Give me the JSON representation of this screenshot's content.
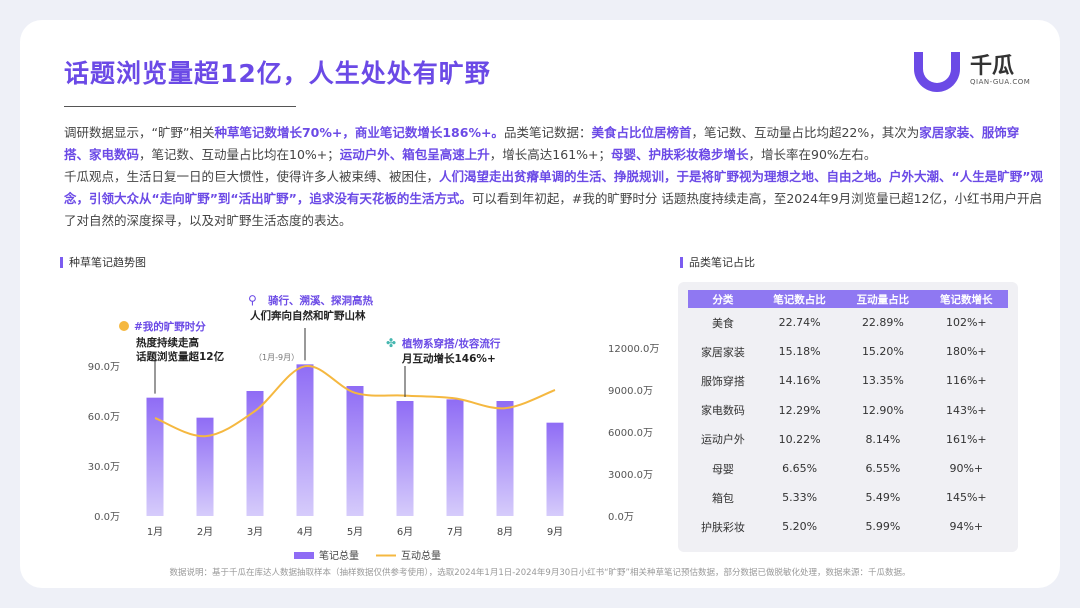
{
  "title": "话题浏览量超12亿，人生处处有旷野",
  "logo": {
    "name": "千瓜",
    "sub": "QIAN-GUA.COM"
  },
  "paragraph1": [
    {
      "t": "调研数据显示，“旷野”相关",
      "h": false
    },
    {
      "t": "种草笔记数增长70%+，商业笔记数增长186%+。",
      "h": true
    },
    {
      "t": "品类笔记数据：",
      "h": false
    },
    {
      "t": "美食占比位居榜首",
      "h": true
    },
    {
      "t": "，笔记数、互动量占比均超22%，其次为",
      "h": false
    },
    {
      "t": "家居家装、服饰穿搭、家电数码",
      "h": true
    },
    {
      "t": "，笔记数、互动量占比均在10%+；",
      "h": false
    },
    {
      "t": "运动户外、箱包呈高速上升",
      "h": true
    },
    {
      "t": "，增长高达161%+；",
      "h": false
    },
    {
      "t": "母婴、护肤彩妆稳步增长",
      "h": true
    },
    {
      "t": "，增长率在90%左右。",
      "h": false
    }
  ],
  "paragraph2": [
    {
      "t": "千瓜观点，生活日复一日的巨大惯性，使得许多人被束缚、被困住，",
      "h": false
    },
    {
      "t": "人们渴望走出贫瘠单调的生活、挣脱规训，于是将旷野视为理想之地、自由之地。户外大潮、“人生是旷野”观念，引领大众从“走向旷野”到“活出旷野”，追求没有天花板的生活方式。",
      "h": true
    },
    {
      "t": "可以看到年初起，#我的旷野时分 话题热度持续走高，至2024年9月浏览量已超12亿，小红书用户开启了对自然的深度探寻，以及对旷野生活态度的表达。",
      "h": false
    }
  ],
  "trend_title": "种草笔记趋势图",
  "table_title": "品类笔记占比",
  "annotations": [
    {
      "icon": "sun-icon",
      "line1": "#我的旷野时分",
      "line2": "热度持续走高",
      "line3": "话题浏览量超12亿",
      "sub": "（1月-9月）"
    },
    {
      "icon": "bicycle-icon",
      "line1": "骑行、溯溪、探洞高热",
      "line2": "人们奔向自然和旷野山林"
    },
    {
      "icon": "plant-icon",
      "line1": "植物系穿搭/妆容流行",
      "line2": "月互动增长146%+"
    }
  ],
  "colors": {
    "accent": "#6b4ae6",
    "bar_top": "#8f6cf5",
    "bar_bottom": "#d6ccfb",
    "line": "#f5b840"
  },
  "chart_data": {
    "type": "bar",
    "categories": [
      "1月",
      "2月",
      "3月",
      "4月",
      "5月",
      "6月",
      "7月",
      "8月",
      "9月"
    ],
    "series": [
      {
        "name": "笔记总量",
        "type": "bar",
        "axis": "left",
        "values": [
          71,
          59,
          75,
          91,
          78,
          69,
          70,
          69,
          56
        ]
      },
      {
        "name": "互动总量",
        "type": "line",
        "axis": "right",
        "values": [
          7000,
          5700,
          7500,
          10700,
          8800,
          8600,
          8400,
          7700,
          9000
        ]
      }
    ],
    "yleft": {
      "ticks": [
        "0.0万",
        "30.0万",
        "60.0万",
        "90.0万"
      ],
      "range": [
        0,
        90
      ]
    },
    "yright": {
      "ticks": [
        "0.0万",
        "3000.0万",
        "6000.0万",
        "9000.0万",
        "12000.0万"
      ],
      "range": [
        0,
        12000
      ]
    },
    "legend_position": "bottom"
  },
  "table": {
    "headers": [
      "分类",
      "笔记数占比",
      "互动量占比",
      "笔记数增长"
    ],
    "rows": [
      [
        "美食",
        "22.74%",
        "22.89%",
        "102%+"
      ],
      [
        "家居家装",
        "15.18%",
        "15.20%",
        "180%+"
      ],
      [
        "服饰穿搭",
        "14.16%",
        "13.35%",
        "116%+"
      ],
      [
        "家电数码",
        "12.29%",
        "12.90%",
        "143%+"
      ],
      [
        "运动户外",
        "10.22%",
        "8.14%",
        "161%+"
      ],
      [
        "母婴",
        "6.65%",
        "6.55%",
        "90%+"
      ],
      [
        "箱包",
        "5.33%",
        "5.49%",
        "145%+"
      ],
      [
        "护肤彩妆",
        "5.20%",
        "5.99%",
        "94%+"
      ]
    ]
  },
  "note": "数据说明：基于千瓜在库达人数据抽取样本（抽样数据仅供参考使用），选取2024年1月1日-2024年9月30日小红书“旷野”相关种草笔记预估数据，部分数据已做脱敏化处理，数据来源：千瓜数据。"
}
